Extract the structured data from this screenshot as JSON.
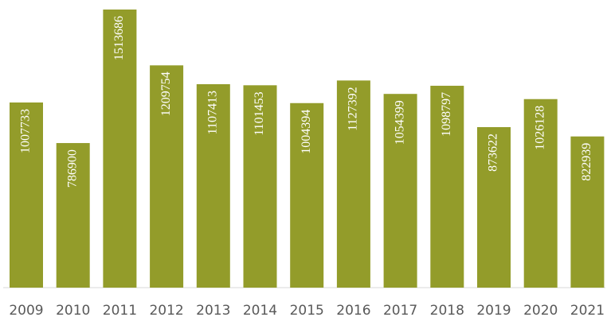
{
  "chart_data": {
    "type": "bar",
    "categories": [
      "2009",
      "2010",
      "2011",
      "2012",
      "2013",
      "2014",
      "2015",
      "2016",
      "2017",
      "2018",
      "2019",
      "2020",
      "2021"
    ],
    "values": [
      1007733,
      786900,
      1513686,
      1209754,
      1107413,
      1101453,
      1004394,
      1127392,
      1054399,
      1098797,
      873622,
      1026128,
      822939
    ],
    "color": "#939c2a"
  }
}
